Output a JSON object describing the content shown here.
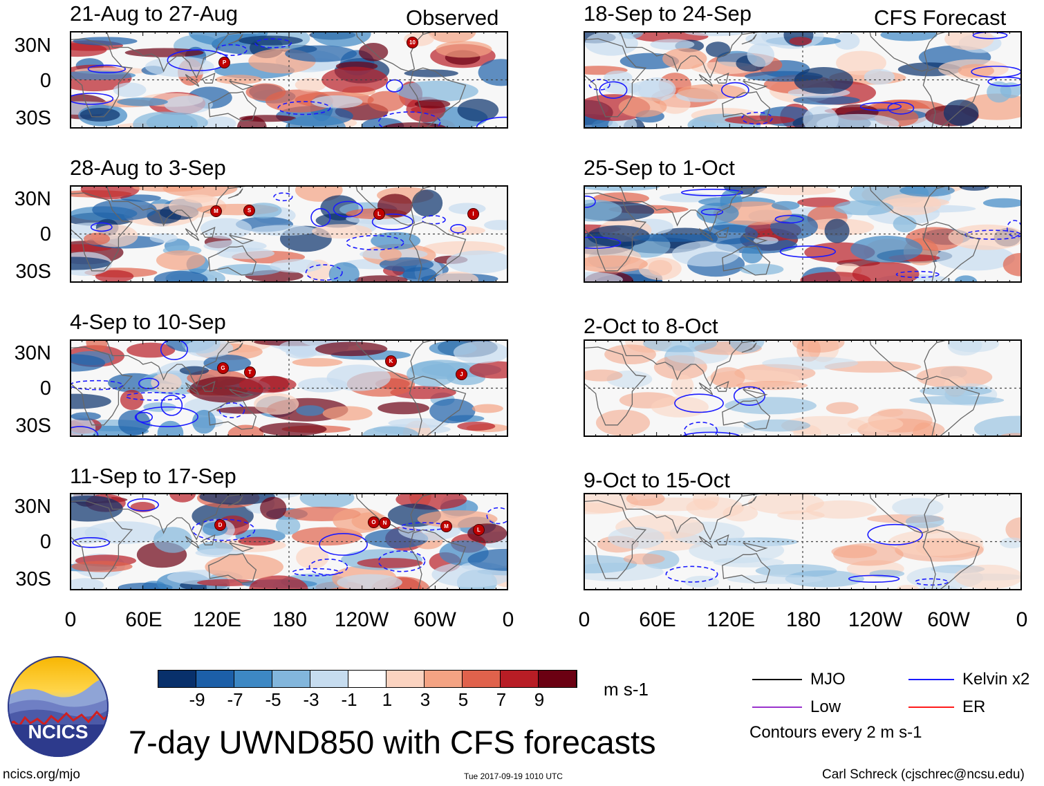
{
  "header": {
    "observed_label": "Observed",
    "forecast_label": "CFS Forecast"
  },
  "panels_observed": [
    {
      "title": "21-Aug to 27-Aug"
    },
    {
      "title": "28-Aug to 3-Sep"
    },
    {
      "title": "4-Sep to 10-Sep"
    },
    {
      "title": "11-Sep to 17-Sep"
    }
  ],
  "panels_forecast": [
    {
      "title": "18-Sep to 24-Sep"
    },
    {
      "title": "25-Sep to 1-Oct"
    },
    {
      "title": "2-Oct to 8-Oct"
    },
    {
      "title": "9-Oct to 15-Oct"
    }
  ],
  "lat_ticks": [
    "30N",
    "0",
    "30S"
  ],
  "lon_ticks": [
    "0",
    "60E",
    "120E",
    "180",
    "120W",
    "60W",
    "0"
  ],
  "storm_labels": {
    "p1": [
      "P",
      "10"
    ],
    "p2": [
      "M",
      "S",
      "L",
      "I"
    ],
    "p3": [
      "G",
      "T",
      "K",
      "J"
    ],
    "p4": [
      "D",
      "O",
      "N",
      "M",
      "L"
    ]
  },
  "colorbar": {
    "labels": [
      "-9",
      "-7",
      "-5",
      "-3",
      "-1",
      "1",
      "3",
      "5",
      "7",
      "9"
    ],
    "colors": [
      "#08306b",
      "#1c5fa8",
      "#3d88c4",
      "#82b6dc",
      "#c6dcef",
      "#ffffff",
      "#fbd3c0",
      "#f4a383",
      "#e0624c",
      "#b81d25",
      "#6b0012"
    ],
    "units": "m s-1"
  },
  "legend": {
    "mjo": "MJO",
    "kelvin": "Kelvin x2",
    "low": "Low",
    "er": "ER",
    "contours": "Contours every 2 m s-1",
    "colors": {
      "mjo": "#000000",
      "kelvin": "#1a1aff",
      "low": "#9932cc",
      "er": "#ff1a1a"
    }
  },
  "title": "7-day UWND850 with CFS forecasts",
  "logo_text": "NCICS",
  "footer": {
    "left": "ncics.org/mjo",
    "center": "Tue 2017-09-19 1010 UTC",
    "right": "Carl Schreck (cjschrec@ncsu.edu)"
  }
}
